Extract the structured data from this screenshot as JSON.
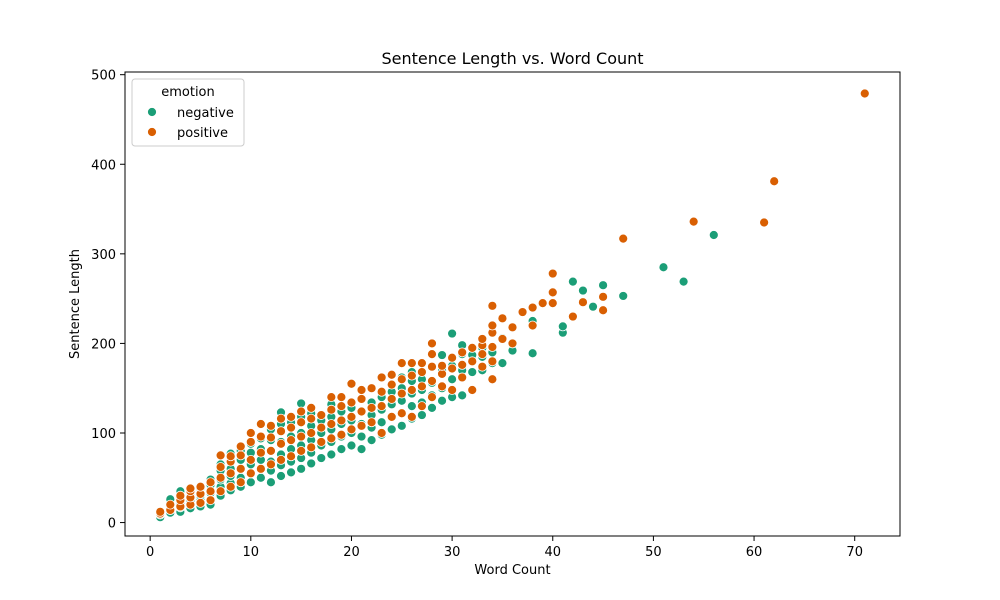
{
  "chart_data": {
    "type": "scatter",
    "title": "Sentence Length vs. Word Count",
    "xlabel": "Word Count",
    "ylabel": "Sentence Length",
    "xlim": [
      -2.5,
      74.5
    ],
    "ylim": [
      -15,
      503
    ],
    "xticks": [
      0,
      10,
      20,
      30,
      40,
      50,
      60,
      70
    ],
    "yticks": [
      0,
      100,
      200,
      300,
      400,
      500
    ],
    "grid": false,
    "legend": {
      "title": "emotion",
      "placement": "top-left"
    },
    "series": [
      {
        "name": "negative",
        "color": "#1b9e77",
        "points": [
          [
            1,
            6
          ],
          [
            1,
            9
          ],
          [
            2,
            11
          ],
          [
            2,
            14
          ],
          [
            2,
            18
          ],
          [
            2,
            22
          ],
          [
            2,
            26
          ],
          [
            3,
            12
          ],
          [
            3,
            17
          ],
          [
            3,
            22
          ],
          [
            3,
            27
          ],
          [
            3,
            35
          ],
          [
            4,
            16
          ],
          [
            4,
            20
          ],
          [
            4,
            24
          ],
          [
            4,
            30
          ],
          [
            5,
            18
          ],
          [
            5,
            25
          ],
          [
            5,
            30
          ],
          [
            5,
            38
          ],
          [
            6,
            20
          ],
          [
            6,
            26
          ],
          [
            6,
            33
          ],
          [
            6,
            42
          ],
          [
            6,
            48
          ],
          [
            7,
            30
          ],
          [
            7,
            40
          ],
          [
            7,
            48
          ],
          [
            7,
            58
          ],
          [
            7,
            65
          ],
          [
            8,
            36
          ],
          [
            8,
            44
          ],
          [
            8,
            52
          ],
          [
            8,
            60
          ],
          [
            8,
            70
          ],
          [
            8,
            77
          ],
          [
            9,
            40
          ],
          [
            9,
            50
          ],
          [
            9,
            60
          ],
          [
            9,
            70
          ],
          [
            9,
            80
          ],
          [
            10,
            45
          ],
          [
            10,
            55
          ],
          [
            10,
            65
          ],
          [
            10,
            78
          ],
          [
            10,
            88
          ],
          [
            11,
            50
          ],
          [
            11,
            60
          ],
          [
            11,
            70
          ],
          [
            11,
            82
          ],
          [
            11,
            94
          ],
          [
            12,
            45
          ],
          [
            12,
            58
          ],
          [
            12,
            68
          ],
          [
            12,
            80
          ],
          [
            12,
            92
          ],
          [
            12,
            104
          ],
          [
            13,
            52
          ],
          [
            13,
            64
          ],
          [
            13,
            76
          ],
          [
            13,
            90
          ],
          [
            13,
            110
          ],
          [
            13,
            123
          ],
          [
            14,
            56
          ],
          [
            14,
            68
          ],
          [
            14,
            82
          ],
          [
            14,
            96
          ],
          [
            14,
            112
          ],
          [
            15,
            60
          ],
          [
            15,
            72
          ],
          [
            15,
            86
          ],
          [
            15,
            100
          ],
          [
            15,
            118
          ],
          [
            15,
            133
          ],
          [
            16,
            66
          ],
          [
            16,
            78
          ],
          [
            16,
            92
          ],
          [
            16,
            108
          ],
          [
            16,
            122
          ],
          [
            17,
            72
          ],
          [
            17,
            86
          ],
          [
            17,
            100
          ],
          [
            17,
            114
          ],
          [
            18,
            76
          ],
          [
            18,
            90
          ],
          [
            18,
            104
          ],
          [
            18,
            118
          ],
          [
            18,
            132
          ],
          [
            19,
            82
          ],
          [
            19,
            96
          ],
          [
            19,
            110
          ],
          [
            19,
            124
          ],
          [
            20,
            86
          ],
          [
            20,
            100
          ],
          [
            20,
            114
          ],
          [
            20,
            128
          ],
          [
            21,
            82
          ],
          [
            21,
            96
          ],
          [
            21,
            110
          ],
          [
            21,
            124
          ],
          [
            21,
            138
          ],
          [
            22,
            92
          ],
          [
            22,
            106
          ],
          [
            22,
            120
          ],
          [
            22,
            134
          ],
          [
            23,
            98
          ],
          [
            23,
            112
          ],
          [
            23,
            126
          ],
          [
            23,
            140
          ],
          [
            24,
            104
          ],
          [
            24,
            118
          ],
          [
            24,
            132
          ],
          [
            24,
            146
          ],
          [
            25,
            108
          ],
          [
            25,
            122
          ],
          [
            25,
            136
          ],
          [
            25,
            150
          ],
          [
            25,
            162
          ],
          [
            26,
            116
          ],
          [
            26,
            130
          ],
          [
            26,
            144
          ],
          [
            26,
            158
          ],
          [
            26,
            168
          ],
          [
            27,
            120
          ],
          [
            27,
            134
          ],
          [
            27,
            148
          ],
          [
            27,
            160
          ],
          [
            28,
            128
          ],
          [
            28,
            142
          ],
          [
            28,
            156
          ],
          [
            29,
            136
          ],
          [
            29,
            150
          ],
          [
            29,
            170
          ],
          [
            29,
            187
          ],
          [
            30,
            140
          ],
          [
            30,
            160
          ],
          [
            30,
            175
          ],
          [
            30,
            211
          ],
          [
            31,
            142
          ],
          [
            31,
            170
          ],
          [
            31,
            188
          ],
          [
            31,
            198
          ],
          [
            32,
            148
          ],
          [
            32,
            168
          ],
          [
            32,
            180
          ],
          [
            32,
            187
          ],
          [
            33,
            170
          ],
          [
            33,
            185
          ],
          [
            33,
            195
          ],
          [
            34,
            178
          ],
          [
            34,
            190
          ],
          [
            35,
            178
          ],
          [
            35,
            206
          ],
          [
            36,
            192
          ],
          [
            38,
            189
          ],
          [
            38,
            225
          ],
          [
            41,
            212
          ],
          [
            41,
            219
          ],
          [
            42,
            269
          ],
          [
            43,
            259
          ],
          [
            44,
            241
          ],
          [
            45,
            265
          ],
          [
            47,
            253
          ],
          [
            51,
            285
          ],
          [
            53,
            269
          ],
          [
            56,
            321
          ]
        ]
      },
      {
        "name": "positive",
        "color": "#d95f02",
        "points": [
          [
            1,
            10
          ],
          [
            1,
            12
          ],
          [
            2,
            14
          ],
          [
            2,
            20
          ],
          [
            3,
            18
          ],
          [
            3,
            25
          ],
          [
            3,
            30
          ],
          [
            4,
            20
          ],
          [
            4,
            28
          ],
          [
            4,
            35
          ],
          [
            4,
            38
          ],
          [
            5,
            22
          ],
          [
            5,
            32
          ],
          [
            5,
            40
          ],
          [
            6,
            25
          ],
          [
            6,
            35
          ],
          [
            6,
            45
          ],
          [
            7,
            35
          ],
          [
            7,
            50
          ],
          [
            7,
            62
          ],
          [
            7,
            75
          ],
          [
            8,
            40
          ],
          [
            8,
            55
          ],
          [
            8,
            68
          ],
          [
            8,
            74
          ],
          [
            9,
            45
          ],
          [
            9,
            60
          ],
          [
            9,
            75
          ],
          [
            9,
            85
          ],
          [
            10,
            55
          ],
          [
            10,
            70
          ],
          [
            10,
            90
          ],
          [
            10,
            100
          ],
          [
            11,
            60
          ],
          [
            11,
            78
          ],
          [
            11,
            96
          ],
          [
            11,
            110
          ],
          [
            12,
            65
          ],
          [
            12,
            80
          ],
          [
            12,
            95
          ],
          [
            12,
            108
          ],
          [
            13,
            70
          ],
          [
            13,
            88
          ],
          [
            13,
            102
          ],
          [
            13,
            116
          ],
          [
            14,
            74
          ],
          [
            14,
            92
          ],
          [
            14,
            106
          ],
          [
            14,
            118
          ],
          [
            15,
            80
          ],
          [
            15,
            96
          ],
          [
            15,
            112
          ],
          [
            15,
            124
          ],
          [
            16,
            84
          ],
          [
            16,
            100
          ],
          [
            16,
            116
          ],
          [
            16,
            128
          ],
          [
            17,
            90
          ],
          [
            17,
            106
          ],
          [
            17,
            120
          ],
          [
            18,
            94
          ],
          [
            18,
            110
          ],
          [
            18,
            126
          ],
          [
            18,
            140
          ],
          [
            19,
            98
          ],
          [
            19,
            114
          ],
          [
            19,
            130
          ],
          [
            19,
            140
          ],
          [
            20,
            104
          ],
          [
            20,
            118
          ],
          [
            20,
            134
          ],
          [
            20,
            155
          ],
          [
            21,
            108
          ],
          [
            21,
            124
          ],
          [
            21,
            138
          ],
          [
            21,
            148
          ],
          [
            22,
            112
          ],
          [
            22,
            128
          ],
          [
            22,
            150
          ],
          [
            23,
            100
          ],
          [
            23,
            130
          ],
          [
            23,
            146
          ],
          [
            23,
            162
          ],
          [
            24,
            118
          ],
          [
            24,
            138
          ],
          [
            24,
            154
          ],
          [
            24,
            165
          ],
          [
            25,
            122
          ],
          [
            25,
            144
          ],
          [
            25,
            160
          ],
          [
            25,
            178
          ],
          [
            26,
            118
          ],
          [
            26,
            148
          ],
          [
            26,
            164
          ],
          [
            26,
            178
          ],
          [
            27,
            130
          ],
          [
            27,
            152
          ],
          [
            27,
            168
          ],
          [
            27,
            178
          ],
          [
            28,
            140
          ],
          [
            28,
            158
          ],
          [
            28,
            174
          ],
          [
            28,
            188
          ],
          [
            28,
            200
          ],
          [
            29,
            152
          ],
          [
            29,
            166
          ],
          [
            29,
            175
          ],
          [
            30,
            148
          ],
          [
            30,
            172
          ],
          [
            30,
            184
          ],
          [
            31,
            162
          ],
          [
            31,
            176
          ],
          [
            31,
            190
          ],
          [
            32,
            148
          ],
          [
            32,
            180
          ],
          [
            32,
            195
          ],
          [
            33,
            174
          ],
          [
            33,
            188
          ],
          [
            33,
            198
          ],
          [
            33,
            205
          ],
          [
            34,
            160
          ],
          [
            34,
            180
          ],
          [
            34,
            196
          ],
          [
            34,
            212
          ],
          [
            34,
            220
          ],
          [
            34,
            242
          ],
          [
            35,
            205
          ],
          [
            35,
            228
          ],
          [
            36,
            200
          ],
          [
            36,
            218
          ],
          [
            37,
            235
          ],
          [
            38,
            220
          ],
          [
            38,
            240
          ],
          [
            39,
            245
          ],
          [
            40,
            245
          ],
          [
            40,
            257
          ],
          [
            40,
            278
          ],
          [
            42,
            230
          ],
          [
            43,
            246
          ],
          [
            45,
            237
          ],
          [
            45,
            252
          ],
          [
            47,
            317
          ],
          [
            54,
            336
          ],
          [
            61,
            335
          ],
          [
            62,
            381
          ],
          [
            71,
            479
          ]
        ]
      }
    ]
  }
}
